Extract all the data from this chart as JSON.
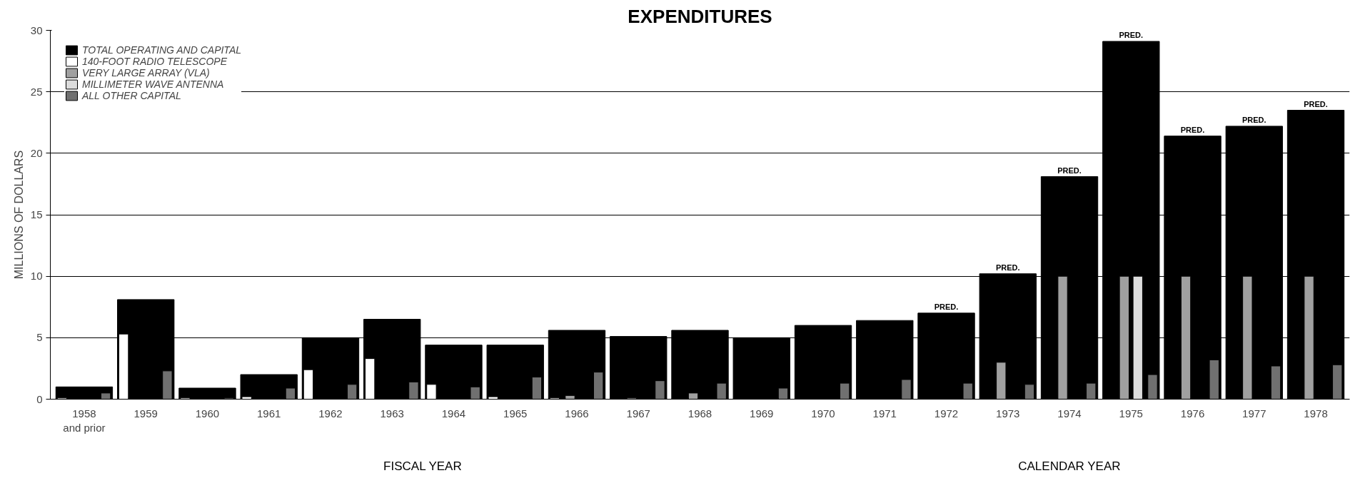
{
  "chart_data": {
    "type": "bar",
    "title": "EXPENDITURES",
    "ylabel": "MILLIONS OF DOLLARS",
    "categories": [
      "1958\nand prior",
      "1959",
      "1960",
      "1961",
      "1962",
      "1963",
      "1964",
      "1965",
      "1966",
      "1967",
      "1968",
      "1969",
      "1970",
      "1971",
      "1972",
      "1973",
      "1974",
      "1975",
      "1976",
      "1977",
      "1978"
    ],
    "series": [
      {
        "name": "TOTAL OPERATING AND CAPITAL",
        "color": "#000000",
        "values": [
          1.0,
          8.1,
          0.9,
          2.0,
          5.0,
          6.5,
          4.4,
          4.4,
          5.6,
          5.1,
          5.6,
          5.0,
          6.0,
          6.4,
          7.0,
          10.2,
          18.1,
          29.1,
          21.4,
          22.2,
          23.5
        ]
      },
      {
        "name": "140-FOOT RADIO TELESCOPE",
        "color": "#ffffff",
        "values": [
          0.1,
          5.3,
          0.1,
          0.2,
          2.4,
          3.3,
          1.2,
          0.2,
          0.1,
          null,
          null,
          null,
          null,
          null,
          null,
          null,
          null,
          null,
          null,
          null,
          null
        ]
      },
      {
        "name": "VERY LARGE ARRAY (VLA)",
        "color": "#a0a0a0",
        "values": [
          null,
          null,
          null,
          null,
          null,
          null,
          null,
          null,
          0.3,
          0.1,
          0.5,
          null,
          null,
          null,
          null,
          3.0,
          10.0,
          10.0,
          10.0,
          10.0,
          10.0
        ]
      },
      {
        "name": "MILLIMETER WAVE ANTENNA",
        "color": "#dcdcdc",
        "values": [
          null,
          null,
          null,
          null,
          null,
          null,
          null,
          null,
          null,
          null,
          null,
          null,
          null,
          null,
          null,
          null,
          null,
          10.0,
          null,
          null,
          null
        ]
      },
      {
        "name": "ALL OTHER CAPITAL",
        "color": "#707070",
        "values": [
          0.5,
          2.3,
          0.1,
          0.9,
          1.2,
          1.4,
          1.0,
          1.8,
          2.2,
          1.5,
          1.3,
          0.9,
          1.3,
          1.6,
          1.3,
          1.2,
          1.3,
          2.0,
          3.2,
          2.7,
          2.8
        ]
      }
    ],
    "ylim": [
      0,
      30
    ],
    "yticks": [
      0,
      5,
      10,
      15,
      20,
      25,
      30
    ],
    "grid": "y",
    "legend": "top left",
    "annotations": [
      {
        "text": "PRED.",
        "x": "1972",
        "y": 7.0
      },
      {
        "text": "PRED.",
        "x": "1973",
        "y": 10.2
      },
      {
        "text": "PRED.",
        "x": "1974",
        "y": 18.1
      },
      {
        "text": "PRED.",
        "x": "1975",
        "y": 29.1
      },
      {
        "text": "PRED.",
        "x": "1976",
        "y": 21.4
      },
      {
        "text": "PRED.",
        "x": "1977",
        "y": 22.2
      },
      {
        "text": "PRED.",
        "x": "1978",
        "y": 23.5
      },
      "FISCAL YEAR",
      "CALENDAR YEAR"
    ]
  }
}
